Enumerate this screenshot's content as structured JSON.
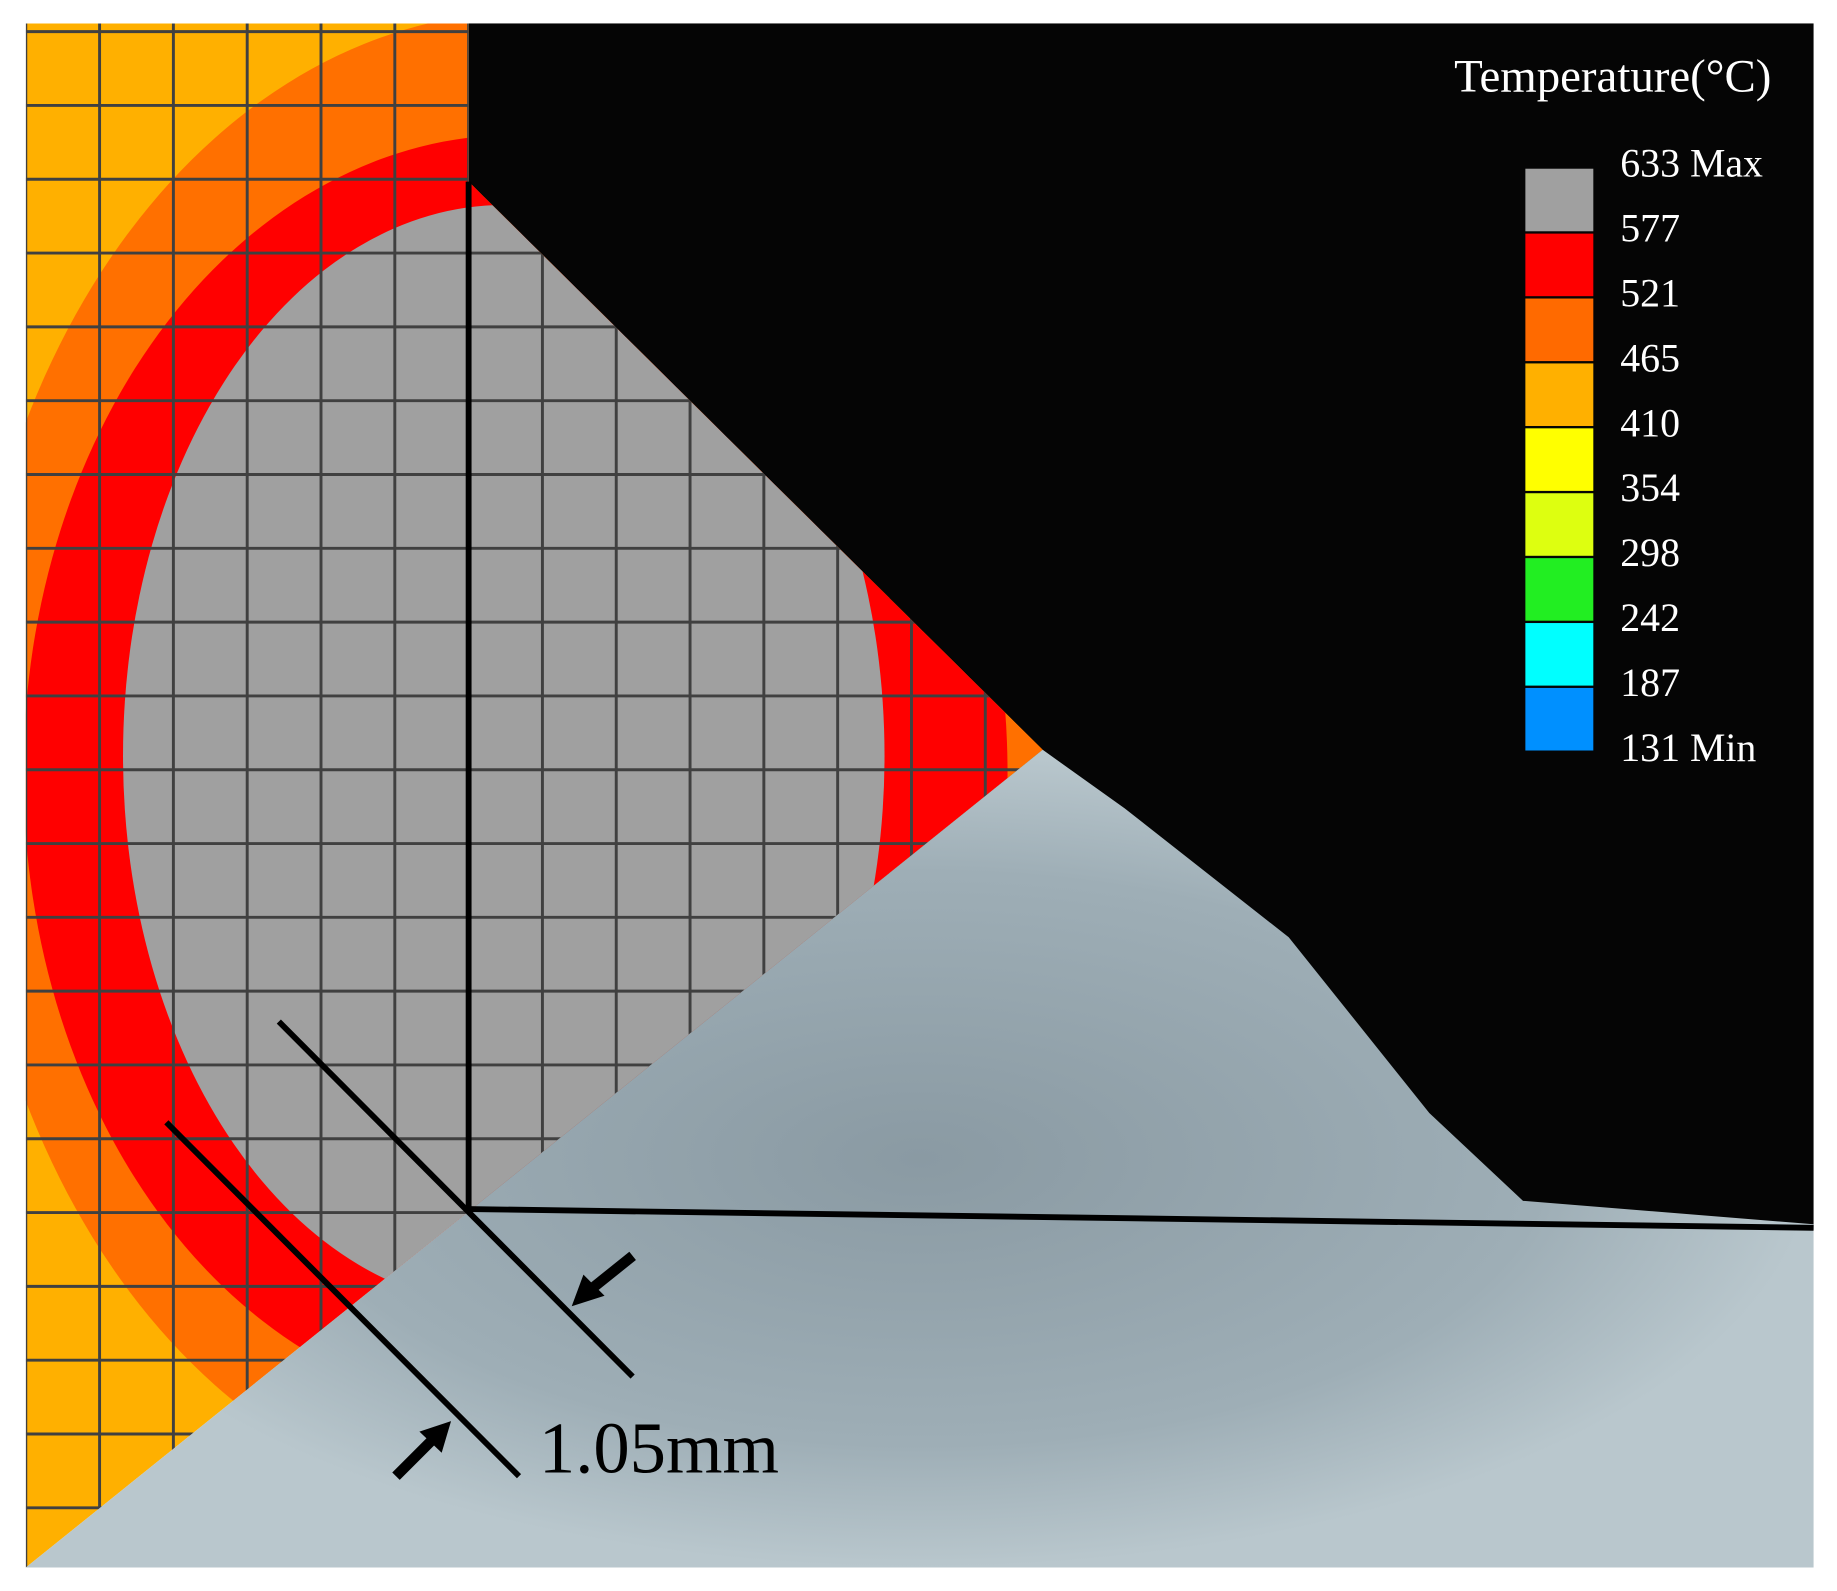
{
  "legend": {
    "title": "Temperature(°C)",
    "labels": [
      "633 Max",
      "577",
      "521",
      "465",
      "410",
      "354",
      "298",
      "242",
      "187",
      "131 Min"
    ],
    "colors": [
      "#a0a0a0",
      "#ff0000",
      "#ff6a00",
      "#ffb000",
      "#ffff00",
      "#ddff10",
      "#22ee22",
      "#00ffff",
      "#0090ff"
    ]
  },
  "annotation": "1.05mm"
}
